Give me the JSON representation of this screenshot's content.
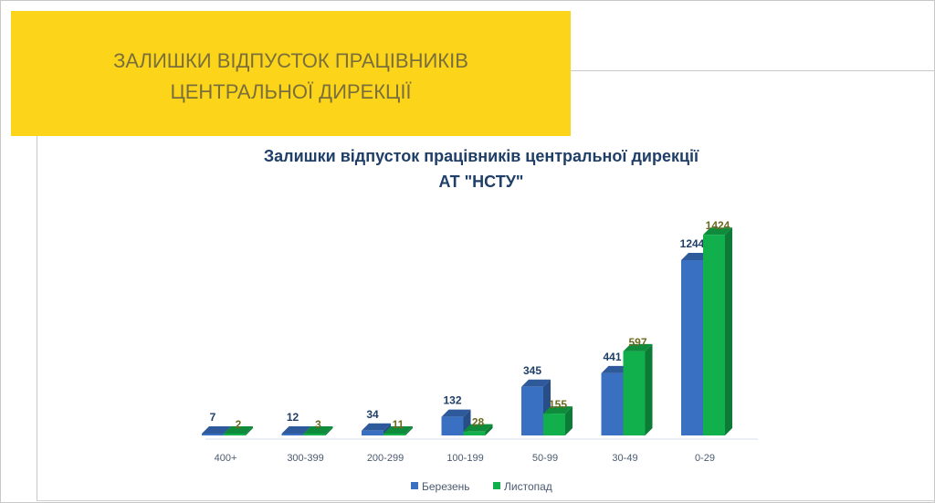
{
  "banner": {
    "line1": "ЗАЛИШКИ ВІДПУСТОК ПРАЦІВНИКІВ",
    "line2": "ЦЕНТРАЛЬНОЇ ДИРЕКЦІЇ"
  },
  "chart_data": {
    "type": "bar",
    "title": "Залишки відпусток працівників центральної дирекції",
    "subtitle": "АТ \"НСТУ\"",
    "categories": [
      "400+",
      "300-399",
      "200-299",
      "100-199",
      "50-99",
      "30-49",
      "0-29"
    ],
    "series": [
      {
        "name": "Березень",
        "values": [
          7,
          12,
          34,
          132,
          345,
          441,
          1244
        ],
        "color": "#3a70c2"
      },
      {
        "name": "Листопад",
        "values": [
          2,
          3,
          11,
          28,
          155,
          597,
          1424
        ],
        "color": "#12b04c"
      }
    ],
    "label_colors": [
      "#1f3f68",
      "#6b6a20"
    ],
    "legend": "bottom",
    "grid": false
  }
}
